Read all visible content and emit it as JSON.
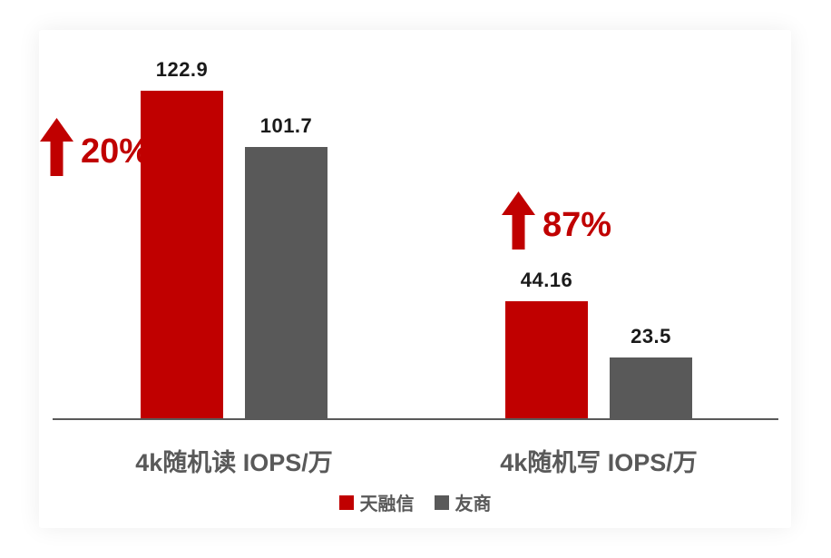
{
  "chart_data": {
    "type": "bar",
    "title": "",
    "categories": [
      "4k随机读 IOPS/万",
      "4k随机写 IOPS/万"
    ],
    "series": [
      {
        "name": "天融信",
        "color": "#c00000",
        "values": [
          122.9,
          44.16
        ],
        "labels": [
          "122.9",
          "44.16"
        ]
      },
      {
        "name": "友商",
        "color": "#595959",
        "values": [
          101.7,
          23.5
        ],
        "labels": [
          "101.7",
          "23.5"
        ]
      }
    ],
    "annotations": [
      {
        "text": "20%",
        "symbol": "up-arrow",
        "color": "#c00000",
        "applies_to": "4k随机读 IOPS/万"
      },
      {
        "text": "87%",
        "symbol": "up-arrow",
        "color": "#c00000",
        "applies_to": "4k随机写 IOPS/万"
      }
    ],
    "ylim": [
      0,
      145.5
    ],
    "grid": false,
    "y_axis_visible": false,
    "legend_position": "bottom"
  },
  "legend": {
    "items": [
      {
        "label": "天融信",
        "color": "#c00000"
      },
      {
        "label": "友商",
        "color": "#595959"
      }
    ]
  },
  "colors": {
    "primary_red": "#c00000",
    "neutral_gray": "#595959",
    "axis_line": "#595959",
    "value_text": "#1a1a1a",
    "category_text": "#595959",
    "background": "#ffffff"
  }
}
